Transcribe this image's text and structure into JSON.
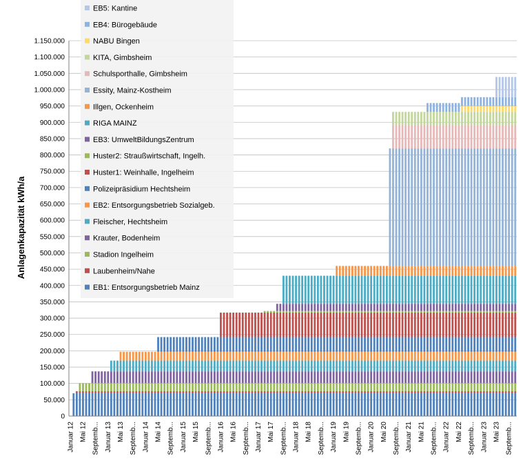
{
  "chart_data": {
    "type": "bar",
    "stacked": true,
    "ylabel": "Anlagenkapazität kWh/a",
    "ylim": [
      0,
      1150000
    ],
    "y_tick_step": 50000,
    "y_ticks": [
      "0",
      "50.000",
      "100.000",
      "150.000",
      "200.000",
      "250.000",
      "300.000",
      "350.000",
      "400.000",
      "450.000",
      "500.000",
      "550.000",
      "600.000",
      "650.000",
      "700.000",
      "750.000",
      "800.000",
      "850.000",
      "900.000",
      "950.000",
      "1.000.000",
      "1.050.000",
      "1.100.000",
      "1.150.000"
    ],
    "grid": true,
    "legend_position": "top-left inside",
    "x_tick_labels": [
      "Januar 12",
      "Mai 12",
      "Septemb...",
      "Januar 13",
      "Mai 13",
      "Septemb...",
      "Januar 14",
      "Mai 14",
      "Septemb...",
      "Januar 15",
      "Mai 15",
      "Septemb...",
      "Januar 16",
      "Mai 16",
      "Septemb...",
      "Januar 17",
      "Mai 17",
      "Septemb...",
      "Januar 18",
      "Mai 18",
      "Septemb...",
      "Januar 19",
      "Mai 19",
      "Septemb...",
      "Januar 20",
      "Mai 20",
      "Septemb...",
      "Januar 21",
      "Mai 21",
      "Septemb...",
      "Januar 22",
      "Mai 22",
      "Septemb...",
      "Januar 23",
      "Mai 23",
      "Septemb..."
    ],
    "months_count": 143,
    "series": [
      {
        "name": "EB1: Entsorgungsbetrieb Mainz",
        "color": "#4f81bd",
        "capacity": 70000,
        "start_month": 1
      },
      {
        "name": "Laubenheim/Nahe",
        "color": "#c0504d",
        "capacity": 6000,
        "start_month": 2
      },
      {
        "name": "Stadion Ingelheim",
        "color": "#9bbb59",
        "capacity": 25000,
        "start_month": 3
      },
      {
        "name": "Krauter, Bodenheim",
        "color": "#8064a2",
        "capacity": 36000,
        "start_month": 7
      },
      {
        "name": "Fleischer, Hechtsheim",
        "color": "#4bacc6",
        "capacity": 33000,
        "start_month": 13
      },
      {
        "name": "EB2: Entsorgungsbetrieb Sozialgeb.",
        "color": "#f79646",
        "capacity": 27000,
        "start_month": 16
      },
      {
        "name": "Polizeipräsidium Hechtsheim",
        "color": "#4f81bd",
        "capacity": 45000,
        "start_month": 28
      },
      {
        "name": "Huster1: Weinhalle, Ingelheim",
        "color": "#c0504d",
        "capacity": 75000,
        "start_month": 48
      },
      {
        "name": "Huster2: Straußwirtschaft, Ingelh.",
        "color": "#9bbb59",
        "capacity": 5000,
        "start_month": 62
      },
      {
        "name": "EB3: UmweltBildungsZentrum",
        "color": "#8064a2",
        "capacity": 22000,
        "start_month": 66
      },
      {
        "name": "RIGA MAINZ",
        "color": "#4bacc6",
        "capacity": 86000,
        "start_month": 68
      },
      {
        "name": "Illgen, Ockenheim",
        "color": "#f79646",
        "capacity": 30000,
        "start_month": 85
      },
      {
        "name": "Essity, Mainz-Kostheim",
        "color": "#95b3d7",
        "capacity": 360000,
        "start_month": 102
      },
      {
        "name": "Schulsporthalle, Gimbsheim",
        "color": "#e6b9b8",
        "capacity": 70000,
        "start_month": 103
      },
      {
        "name": "KITA, Gimbsheim",
        "color": "#c3d69b",
        "capacity": 42000,
        "start_month": 103
      },
      {
        "name": "NABU Bingen",
        "color": "#ffd966",
        "capacity": 18000,
        "start_month": 125
      },
      {
        "name": "EB4: Bürogebäude",
        "color": "#8db3e2",
        "capacity": 27000,
        "start_month": 114
      },
      {
        "name": "EB5: Kantine",
        "color": "#b4c7e7",
        "capacity": 62000,
        "start_month": 136
      }
    ]
  }
}
